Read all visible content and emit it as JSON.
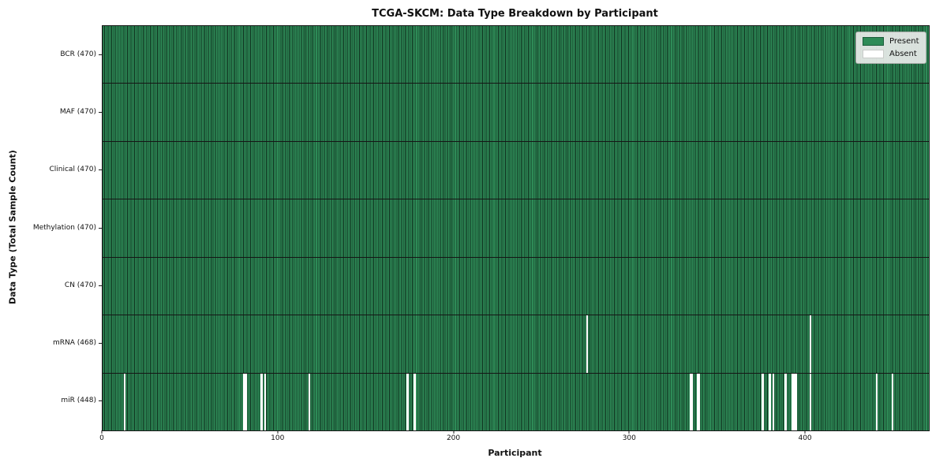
{
  "title": "TCGA-SKCM: Data Type Breakdown by Participant",
  "axes": {
    "x_label": "Participant",
    "y_label": "Data Type (Total Sample Count)",
    "x_tick_labels": [
      "0",
      "100",
      "200",
      "300",
      "400"
    ]
  },
  "legend": {
    "items": [
      {
        "label": "Present",
        "color": "#2e8b57"
      },
      {
        "label": "Absent",
        "color": "#ffffff"
      }
    ]
  },
  "chart_data": {
    "type": "heatmap",
    "title": "TCGA-SKCM: Data Type Breakdown by Participant",
    "xlabel": "Participant",
    "ylabel": "Data Type (Total Sample Count)",
    "n_participants": 470,
    "xlim": [
      0,
      470
    ],
    "x_ticks": [
      0,
      100,
      200,
      300,
      400
    ],
    "grid": false,
    "legend_position": "upper right",
    "colors": {
      "present": "#2e8b57",
      "absent": "#ffffff",
      "cell_edge": "#0e2d1c",
      "row_divider": "#151515"
    },
    "rows": [
      {
        "data_type": "BCR",
        "label": "BCR (470)",
        "present_count": 470,
        "absent_participants": []
      },
      {
        "data_type": "MAF",
        "label": "MAF (470)",
        "present_count": 470,
        "absent_participants": []
      },
      {
        "data_type": "Clinical",
        "label": "Clinical (470)",
        "present_count": 470,
        "absent_participants": []
      },
      {
        "data_type": "Methylation",
        "label": "Methylation (470)",
        "present_count": 470,
        "absent_participants": []
      },
      {
        "data_type": "CN",
        "label": "CN (470)",
        "present_count": 470,
        "absent_participants": []
      },
      {
        "data_type": "mRNA",
        "label": "mRNA (468)",
        "present_count": 468,
        "absent_participants": [
          275,
          402
        ]
      },
      {
        "data_type": "miR",
        "label": "miR (448)",
        "present_count": 448,
        "absent_participants": [
          12,
          80,
          81,
          90,
          92,
          117,
          173,
          177,
          334,
          335,
          338,
          339,
          375,
          379,
          381,
          388,
          392,
          393,
          394,
          402,
          440,
          449
        ]
      }
    ]
  }
}
